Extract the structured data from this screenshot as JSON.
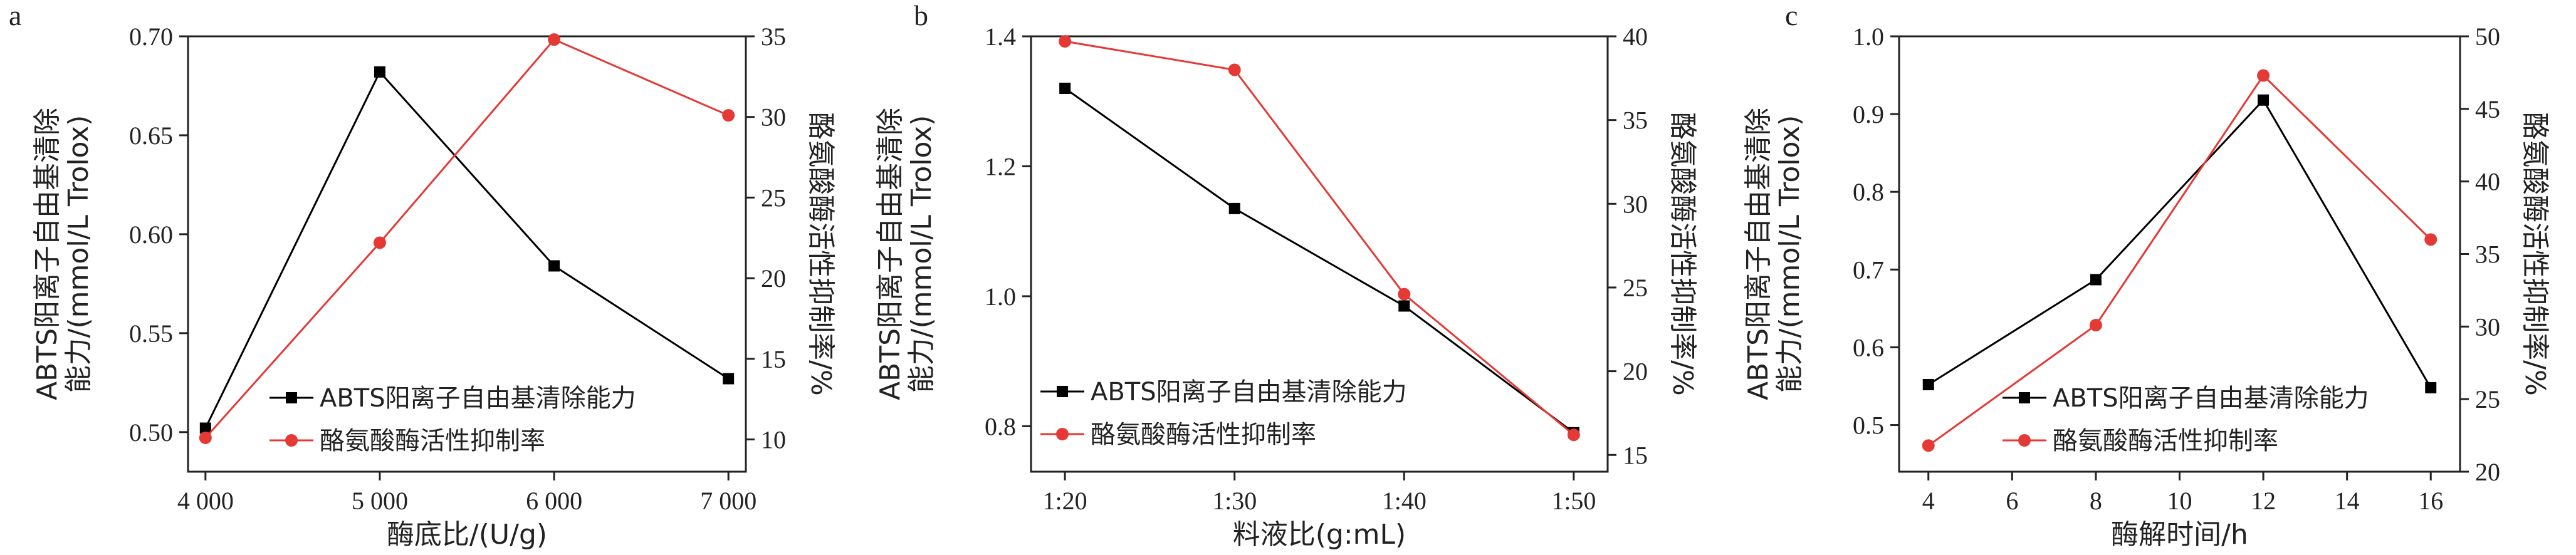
{
  "chart_data": [
    {
      "type": "line",
      "panel_label": "a",
      "xlabel": "酶底比/(U/g)",
      "x": [
        4000,
        5000,
        6000,
        7000
      ],
      "x_tick_labels": [
        "4 000",
        "5 000",
        "6 000",
        "7 000"
      ],
      "xlim": [
        3900,
        7100
      ],
      "ylabel_left": [
        "ABTS阳离子自由基清除",
        "能力/(mmol/L Trolox)"
      ],
      "ylabel_right": "酪氨酸酶活性抑制率/%",
      "ylim_left": [
        0.48,
        0.7
      ],
      "ylim_right": [
        8,
        35
      ],
      "yticks_left": [
        0.5,
        0.55,
        0.6,
        0.65,
        0.7
      ],
      "yticks_left_labels": [
        "0.50",
        "0.55",
        "0.60",
        "0.65",
        "0.70"
      ],
      "yticks_right": [
        10,
        15,
        20,
        25,
        30,
        35
      ],
      "legend_placement": "bottom-center",
      "series": [
        {
          "name": "ABTS阳离子自由基清除能力",
          "axis": "left",
          "color": "#000000",
          "marker": "square",
          "values": [
            0.502,
            0.682,
            0.584,
            0.527
          ]
        },
        {
          "name": "酪氨酸酶活性抑制率",
          "axis": "right",
          "color": "#e53935",
          "marker": "circle",
          "values": [
            10.1,
            22.2,
            34.8,
            30.1
          ]
        }
      ]
    },
    {
      "type": "line",
      "panel_label": "b",
      "xlabel": "料液比(g:mL)",
      "x": [
        0,
        1,
        2,
        3
      ],
      "x_tick_labels": [
        "1:20",
        "1:30",
        "1:40",
        "1:50"
      ],
      "xlim": [
        -0.2,
        3.2
      ],
      "ylabel_left": [
        "ABTS阳离子自由基清除",
        "能力/(mmol/L Trolox)"
      ],
      "ylabel_right": "酪氨酸酶活性抑制率/%",
      "ylim_left": [
        0.73,
        1.4
      ],
      "ylim_right": [
        14,
        40
      ],
      "yticks_left": [
        0.8,
        1.0,
        1.2,
        1.4
      ],
      "yticks_left_labels": [
        "0.8",
        "1.0",
        "1.2",
        "1.4"
      ],
      "yticks_right": [
        15,
        20,
        25,
        30,
        35,
        40
      ],
      "legend_placement": "bottom-left",
      "series": [
        {
          "name": "ABTS阳离子自由基清除能力",
          "axis": "left",
          "color": "#000000",
          "marker": "square",
          "values": [
            1.32,
            1.135,
            0.985,
            0.79
          ]
        },
        {
          "name": "酪氨酸酶活性抑制率",
          "axis": "right",
          "color": "#e53935",
          "marker": "circle",
          "values": [
            39.7,
            38.0,
            24.6,
            16.2
          ]
        }
      ]
    },
    {
      "type": "line",
      "panel_label": "c",
      "xlabel": "酶解时间/h",
      "x": [
        4,
        8,
        12,
        16
      ],
      "x_tick_labels": [
        "4",
        "6",
        "8",
        "10",
        "12",
        "14",
        "16"
      ],
      "x_ticks": [
        4,
        6,
        8,
        10,
        12,
        14,
        16
      ],
      "xlim": [
        3.3,
        16.7
      ],
      "ylabel_left": [
        "ABTS阳离子自由基清除",
        "能力/(mmol/L Trolox)"
      ],
      "ylabel_right": "酪氨酸酶活性抑制率/%",
      "ylim_left": [
        0.44,
        1.0
      ],
      "ylim_right": [
        20,
        50
      ],
      "yticks_left": [
        0.5,
        0.6,
        0.7,
        0.8,
        0.9,
        1.0
      ],
      "yticks_left_labels": [
        "0.5",
        "0.6",
        "0.7",
        "0.8",
        "0.9",
        "1.0"
      ],
      "yticks_right": [
        20,
        25,
        30,
        35,
        40,
        45,
        50
      ],
      "legend_placement": "bottom-center",
      "series": [
        {
          "name": "ABTS阳离子自由基清除能力",
          "axis": "left",
          "color": "#000000",
          "marker": "square",
          "values": [
            0.552,
            0.687,
            0.918,
            0.548
          ]
        },
        {
          "name": "酪氨酸酶活性抑制率",
          "axis": "right",
          "color": "#e53935",
          "marker": "circle",
          "values": [
            21.8,
            30.1,
            47.3,
            36.0
          ]
        }
      ]
    }
  ]
}
